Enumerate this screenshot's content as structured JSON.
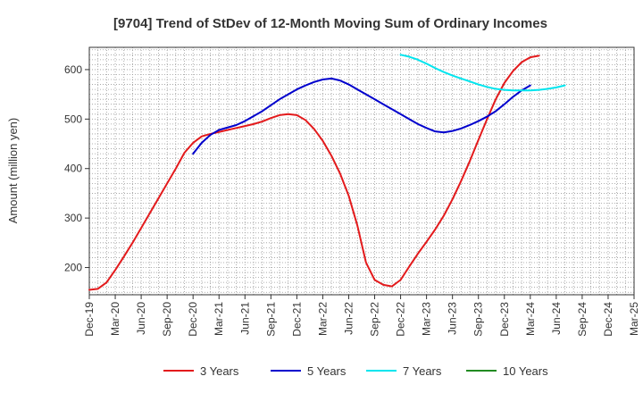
{
  "chart_data": {
    "type": "line",
    "title": "[9704]  Trend of StDev of 12-Month Moving Sum of Ordinary Incomes",
    "xlabel": "",
    "ylabel": "Amount (million yen)",
    "ylim": [
      145,
      645
    ],
    "yticks": [
      200,
      300,
      400,
      500,
      600
    ],
    "x_tick_labels": [
      "Dec-19",
      "Mar-20",
      "Jun-20",
      "Sep-20",
      "Dec-20",
      "Mar-21",
      "Jun-21",
      "Sep-21",
      "Dec-21",
      "Mar-22",
      "Jun-22",
      "Sep-22",
      "Dec-22",
      "Mar-23",
      "Jun-23",
      "Sep-23",
      "Dec-23",
      "Mar-24",
      "Jun-24",
      "Sep-24",
      "Dec-24",
      "Mar-25"
    ],
    "grid": true,
    "legend_position": "bottom",
    "series": [
      {
        "name": "3 Years",
        "color": "#e31a1c",
        "start_index": 0,
        "values": [
          155,
          157,
          170,
          195,
          222,
          250,
          280,
          310,
          340,
          370,
          400,
          432,
          452,
          465,
          470,
          474,
          478,
          482,
          486,
          490,
          495,
          502,
          508,
          510,
          508,
          498,
          480,
          456,
          426,
          390,
          345,
          285,
          210,
          175,
          165,
          162,
          175,
          202,
          228,
          252,
          277,
          305,
          338,
          375,
          415,
          458,
          500,
          540,
          573,
          597,
          615,
          625,
          628
        ]
      },
      {
        "name": "5 Years",
        "color": "#0000cd",
        "start_index": 12,
        "values": [
          430,
          452,
          468,
          478,
          483,
          488,
          496,
          506,
          516,
          528,
          540,
          550,
          560,
          568,
          575,
          580,
          582,
          578,
          570,
          560,
          550,
          540,
          530,
          520,
          510,
          500,
          490,
          482,
          475,
          473,
          476,
          481,
          488,
          496,
          505,
          516,
          530,
          545,
          558,
          568
        ]
      },
      {
        "name": "7 Years",
        "color": "#00e5ee",
        "start_index": 36,
        "values": [
          630,
          626,
          620,
          612,
          603,
          595,
          588,
          582,
          576,
          570,
          565,
          561,
          559,
          558,
          558,
          558,
          559,
          561,
          564,
          568
        ]
      },
      {
        "name": "10 Years",
        "color": "#228b22",
        "start_index": 0,
        "values": []
      }
    ]
  }
}
